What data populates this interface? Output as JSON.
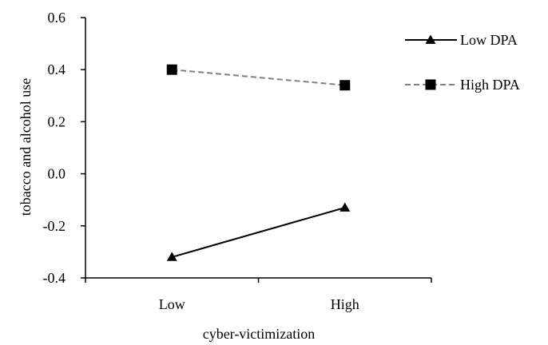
{
  "chart_data": {
    "type": "line",
    "title": "",
    "xlabel": "cyber-victimization",
    "ylabel": "tobacco and alcohol use",
    "categories": [
      "Low",
      "High"
    ],
    "ylim": [
      -0.4,
      0.6
    ],
    "yticks": [
      "0.6",
      "0.4",
      "0.2",
      "0.0",
      "-0.2",
      "-0.4"
    ],
    "ytick_values": [
      0.6,
      0.4,
      0.2,
      0.0,
      -0.2,
      -0.4
    ],
    "grid": false,
    "legend_position": "top-right",
    "series": [
      {
        "name": "Low DPA",
        "values": [
          -0.32,
          -0.13
        ],
        "marker": "triangle",
        "line_style": "solid",
        "color": "#000000"
      },
      {
        "name": "High DPA",
        "values": [
          0.4,
          0.34
        ],
        "marker": "square",
        "line_style": "dashed",
        "color": "#808080",
        "marker_color": "#000000"
      }
    ]
  }
}
